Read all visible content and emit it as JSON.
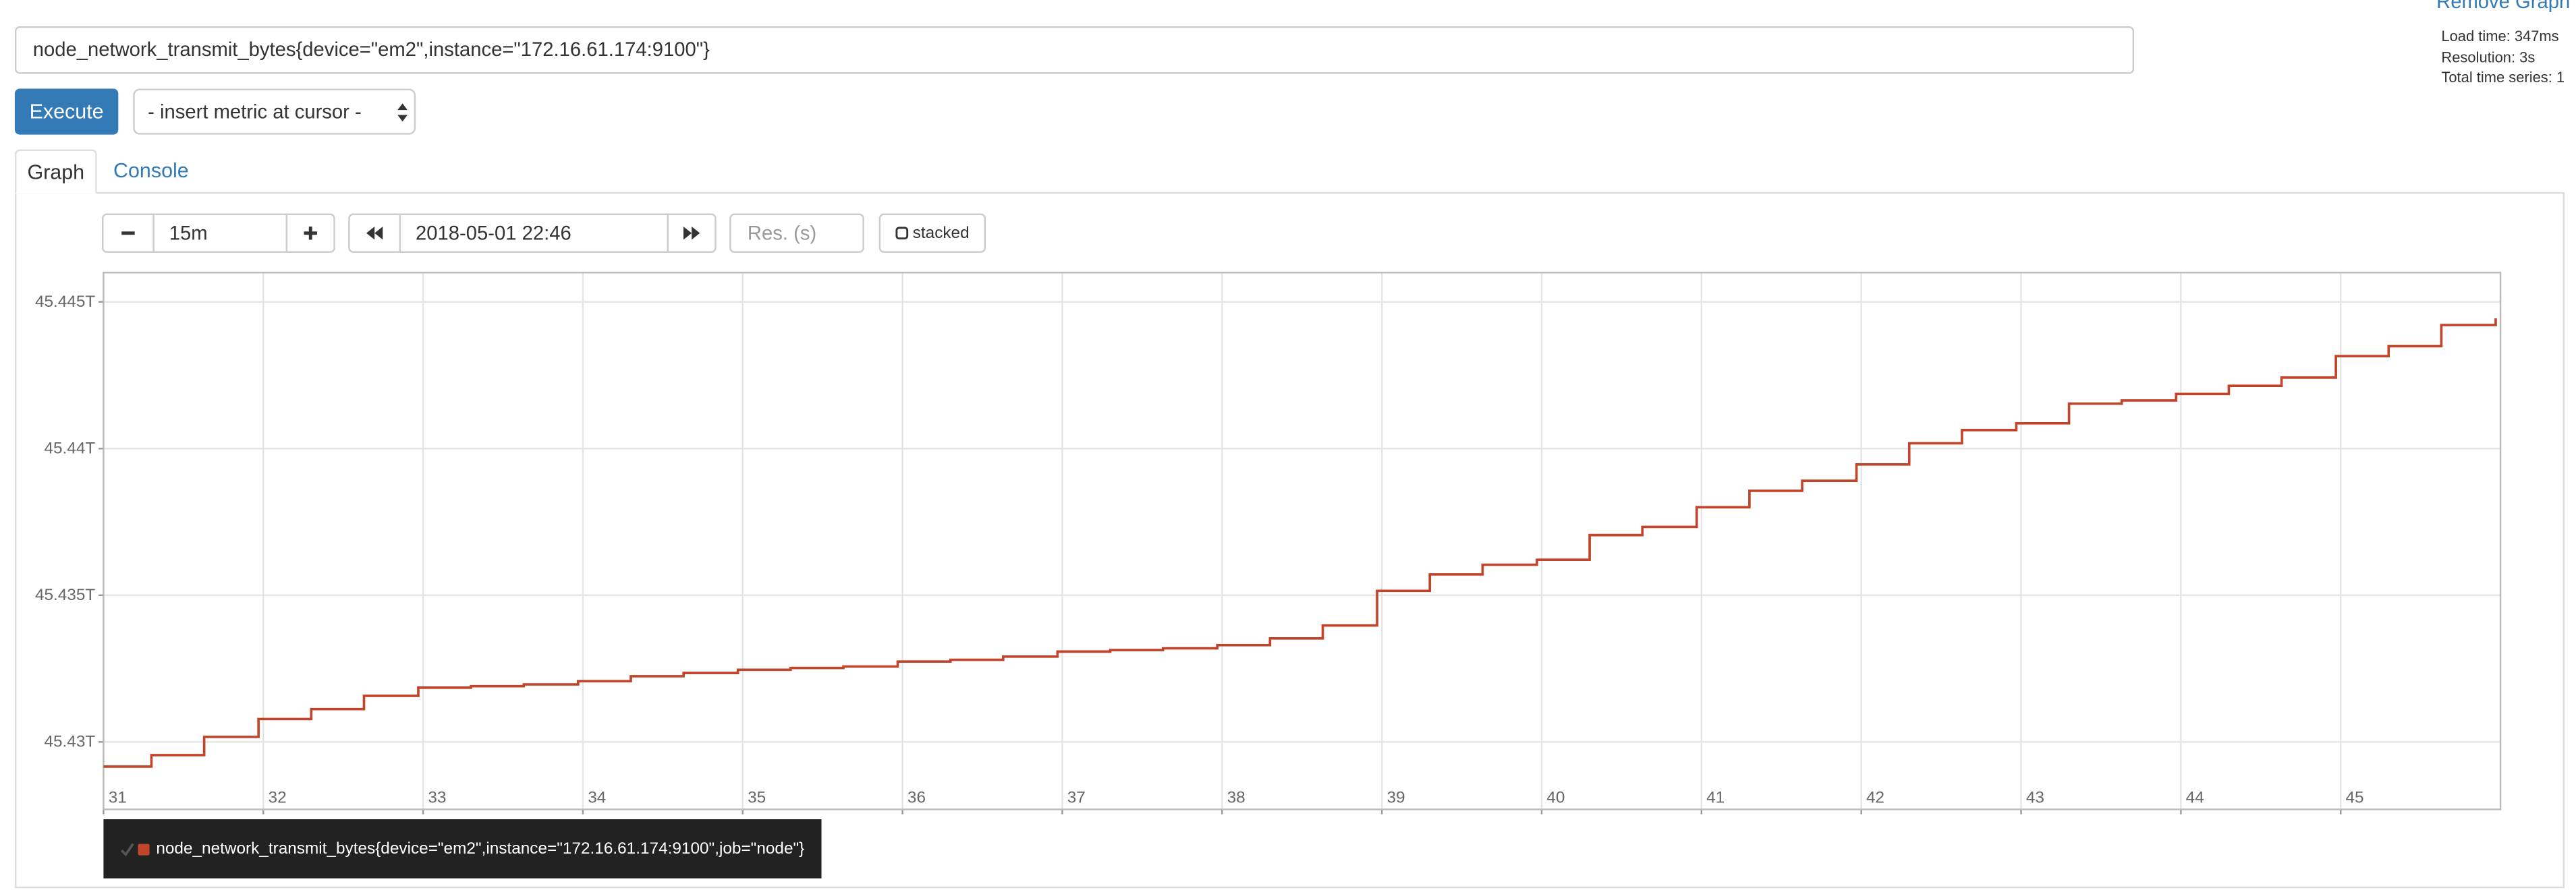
{
  "remove_graph": "Remove Graph",
  "stats": [
    "Load time: 347ms",
    "Resolution: 3s",
    "Total time series: 1"
  ],
  "expression": "node_network_transmit_bytes{device=\"em2\",instance=\"172.16.61.174:9100\"}",
  "execute": "Execute",
  "metric_select": "- insert metric at cursor -",
  "tabs": [
    "Graph",
    "Console"
  ],
  "controls": {
    "range": "15m",
    "end_time": "2018-05-01 22:46",
    "resolution_placeholder": "Res. (s)",
    "stacked": "stacked"
  },
  "chart_data": {
    "type": "line",
    "step": true,
    "grid": true,
    "x": [
      31,
      31.3,
      31.63,
      31.97,
      32.3,
      32.63,
      32.97,
      33.3,
      33.63,
      33.97,
      34.3,
      34.63,
      34.97,
      35.3,
      35.63,
      35.97,
      36.3,
      36.63,
      36.97,
      37.3,
      37.63,
      37.97,
      38.3,
      38.63,
      38.97,
      39.3,
      39.63,
      39.97,
      40.3,
      40.63,
      40.97,
      41.3,
      41.63,
      41.97,
      42.3,
      42.63,
      42.97,
      43.3,
      43.63,
      43.97,
      44.3,
      44.63,
      44.97,
      45.3,
      45.63,
      45.97
    ],
    "xlim": [
      31,
      46
    ],
    "xticks": [
      31,
      32,
      33,
      34,
      35,
      36,
      37,
      38,
      39,
      40,
      41,
      42,
      43,
      44,
      45
    ],
    "ylim": [
      45.4277,
      45.446
    ],
    "yticks": [
      {
        "value": 45.43,
        "label": "45.43T"
      },
      {
        "value": 45.435,
        "label": "45.435T"
      },
      {
        "value": 45.44,
        "label": "45.44T"
      },
      {
        "value": 45.445,
        "label": "45.445T"
      }
    ],
    "series": [
      {
        "name": "node_network_transmit_bytes{device=\"em2\",instance=\"172.16.61.174:9100\",job=\"node\"}",
        "color": "#c1452a",
        "values": [
          45.42916,
          45.42955,
          45.43017,
          45.43078,
          45.43112,
          45.43157,
          45.43185,
          45.4319,
          45.43196,
          45.43207,
          45.43224,
          45.43235,
          45.43246,
          45.43252,
          45.43257,
          45.43274,
          45.4328,
          45.43291,
          45.43308,
          45.43313,
          45.43319,
          45.4333,
          45.43353,
          45.43397,
          45.43515,
          45.43571,
          45.43604,
          45.43621,
          45.43705,
          45.43733,
          45.438,
          45.43856,
          45.4389,
          45.43946,
          45.44018,
          45.44063,
          45.44086,
          45.44153,
          45.44164,
          45.44186,
          45.44214,
          45.44242,
          45.44315,
          45.44349,
          45.44421,
          45.44444
        ]
      }
    ]
  }
}
